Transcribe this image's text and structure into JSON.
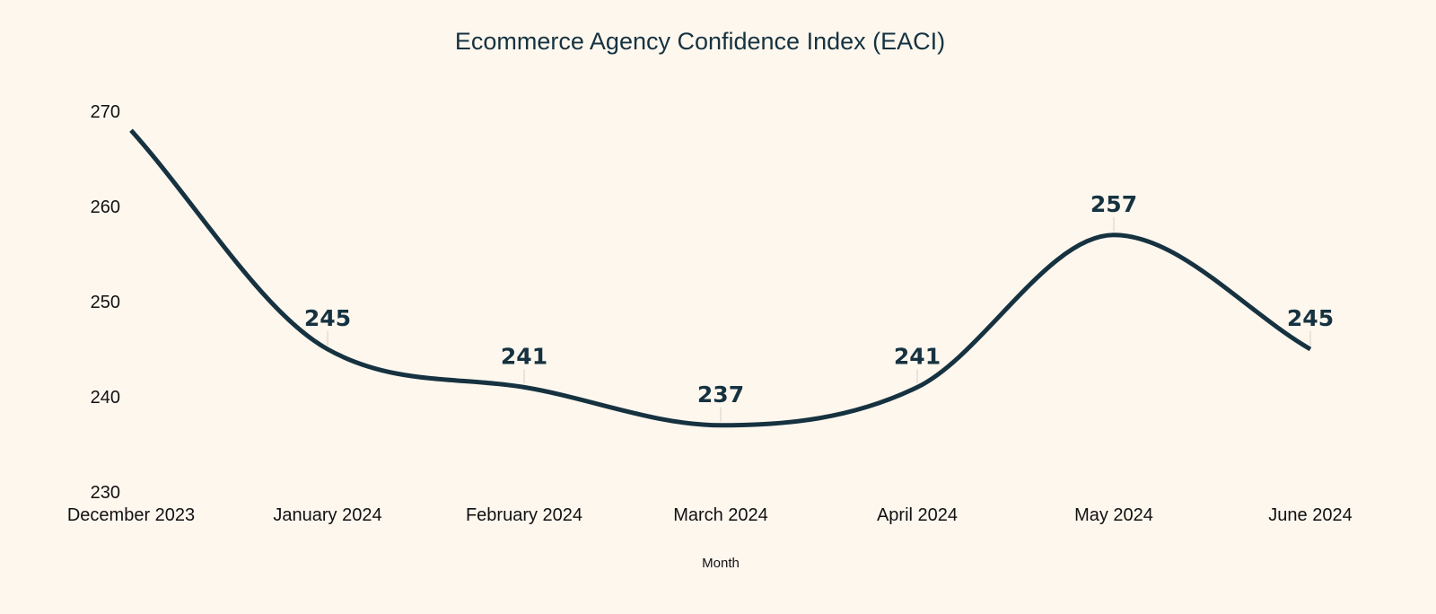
{
  "chart_data": {
    "type": "line",
    "title": "Ecommerce Agency Confidence Index (EACI)",
    "xlabel": "Month",
    "ylabel": "",
    "categories": [
      "December 2023",
      "January 2024",
      "February 2024",
      "March 2024",
      "April 2024",
      "May 2024",
      "June 2024"
    ],
    "series": [
      {
        "values": [
          268,
          245,
          241,
          237,
          241,
          257,
          245
        ],
        "data_labels": [
          "",
          "245",
          "241",
          "237",
          "241",
          "257",
          "245"
        ]
      }
    ],
    "ylim": [
      230,
      270
    ],
    "yticks": [
      "230",
      "240",
      "250",
      "260",
      "270"
    ],
    "grid": false,
    "line_shape": "smooth",
    "line_color": "#163240",
    "background_color": "#fdf7ee"
  }
}
